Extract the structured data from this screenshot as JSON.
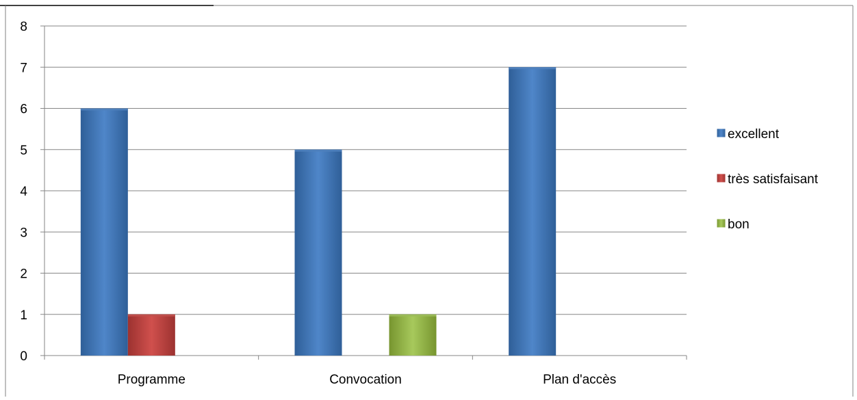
{
  "chart_data": {
    "type": "bar",
    "categories": [
      "Programme",
      "Convocation",
      "Plan d'accès"
    ],
    "series": [
      {
        "name": "excellent",
        "values": [
          6,
          5,
          7
        ],
        "color": "#4f81bd"
      },
      {
        "name": "très satisfaisant",
        "values": [
          1,
          0,
          0
        ],
        "color": "#c0504d"
      },
      {
        "name": "bon",
        "values": [
          0,
          1,
          0
        ],
        "color": "#9bbb59"
      }
    ],
    "ylim": [
      0,
      8
    ],
    "yticks": [
      0,
      1,
      2,
      3,
      4,
      5,
      6,
      7,
      8
    ],
    "grid": true,
    "legend": "right"
  }
}
